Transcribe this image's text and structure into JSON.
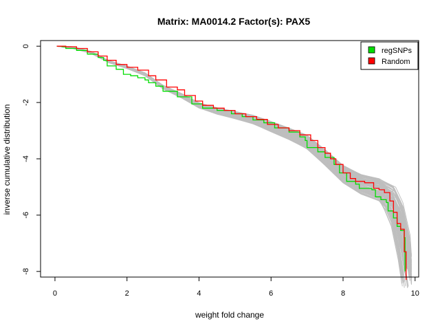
{
  "chart_data": {
    "type": "line",
    "title": "Matrix: MA0014.2 Factor(s): PAX5",
    "xlabel": "weight fold change",
    "ylabel": "inverse cumulative distribution",
    "xlim": [
      0,
      10
    ],
    "ylim": [
      -8.2,
      0.2
    ],
    "xticks": [
      0,
      2,
      4,
      6,
      8,
      10
    ],
    "yticks": [
      0,
      -2,
      -4,
      -6,
      -8
    ],
    "legend": {
      "position": "top-right",
      "entries": [
        {
          "label": "regSNPs",
          "color": "#00dd00"
        },
        {
          "label": "Random",
          "color": "#ff0000"
        }
      ]
    },
    "background_series": {
      "color": "#bebebe",
      "count": 100,
      "description_points": [
        [
          0.05,
          0
        ],
        [
          0.5,
          -0.05
        ],
        [
          1.0,
          -0.22
        ],
        [
          1.5,
          -0.55
        ],
        [
          2.0,
          -0.75
        ],
        [
          2.5,
          -1.0
        ],
        [
          3.0,
          -1.45
        ],
        [
          3.5,
          -1.75
        ],
        [
          4.0,
          -2.1
        ],
        [
          4.5,
          -2.3
        ],
        [
          5.0,
          -2.45
        ],
        [
          5.5,
          -2.6
        ],
        [
          6.0,
          -2.85
        ],
        [
          6.5,
          -3.1
        ],
        [
          7.0,
          -3.4
        ],
        [
          7.5,
          -3.95
        ],
        [
          8.0,
          -4.55
        ],
        [
          8.5,
          -4.9
        ],
        [
          9.0,
          -5.1
        ],
        [
          9.3,
          -5.4
        ],
        [
          9.5,
          -6.0
        ],
        [
          9.7,
          -7.2
        ],
        [
          9.8,
          -8.0
        ]
      ]
    },
    "series": [
      {
        "name": "regSNPs",
        "color": "#00dd00",
        "points": [
          [
            0.05,
            0
          ],
          [
            0.2,
            -0.02
          ],
          [
            0.3,
            -0.08
          ],
          [
            0.6,
            -0.15
          ],
          [
            0.9,
            -0.28
          ],
          [
            1.2,
            -0.4
          ],
          [
            1.35,
            -0.5
          ],
          [
            1.45,
            -0.7
          ],
          [
            1.7,
            -0.82
          ],
          [
            1.9,
            -1.0
          ],
          [
            2.1,
            -1.05
          ],
          [
            2.3,
            -1.12
          ],
          [
            2.5,
            -1.2
          ],
          [
            2.6,
            -1.3
          ],
          [
            2.8,
            -1.42
          ],
          [
            3.0,
            -1.6
          ],
          [
            3.4,
            -1.8
          ],
          [
            3.8,
            -2.05
          ],
          [
            4.1,
            -2.2
          ],
          [
            4.5,
            -2.28
          ],
          [
            4.9,
            -2.4
          ],
          [
            5.2,
            -2.5
          ],
          [
            5.5,
            -2.62
          ],
          [
            5.8,
            -2.72
          ],
          [
            6.1,
            -2.9
          ],
          [
            6.5,
            -3.05
          ],
          [
            6.8,
            -3.22
          ],
          [
            6.95,
            -3.35
          ],
          [
            7.0,
            -3.6
          ],
          [
            7.3,
            -3.75
          ],
          [
            7.5,
            -3.95
          ],
          [
            7.75,
            -4.2
          ],
          [
            7.9,
            -4.5
          ],
          [
            8.1,
            -4.8
          ],
          [
            8.35,
            -4.9
          ],
          [
            8.45,
            -5.05
          ],
          [
            8.8,
            -5.1
          ],
          [
            8.9,
            -5.35
          ],
          [
            9.05,
            -5.45
          ],
          [
            9.2,
            -5.55
          ],
          [
            9.25,
            -5.85
          ],
          [
            9.4,
            -6.1
          ],
          [
            9.5,
            -6.4
          ],
          [
            9.6,
            -6.55
          ],
          [
            9.7,
            -6.8
          ],
          [
            9.72,
            -8.0
          ]
        ]
      },
      {
        "name": "Random",
        "color": "#ff0000",
        "points": [
          [
            0.05,
            0
          ],
          [
            0.3,
            -0.02
          ],
          [
            0.6,
            -0.08
          ],
          [
            0.9,
            -0.2
          ],
          [
            1.2,
            -0.35
          ],
          [
            1.45,
            -0.5
          ],
          [
            1.7,
            -0.65
          ],
          [
            2.0,
            -0.75
          ],
          [
            2.3,
            -0.85
          ],
          [
            2.6,
            -1.05
          ],
          [
            2.8,
            -1.2
          ],
          [
            3.1,
            -1.45
          ],
          [
            3.4,
            -1.55
          ],
          [
            3.6,
            -1.75
          ],
          [
            3.9,
            -1.95
          ],
          [
            4.1,
            -2.1
          ],
          [
            4.4,
            -2.2
          ],
          [
            4.7,
            -2.28
          ],
          [
            5.0,
            -2.4
          ],
          [
            5.3,
            -2.5
          ],
          [
            5.6,
            -2.6
          ],
          [
            5.9,
            -2.78
          ],
          [
            6.2,
            -2.9
          ],
          [
            6.5,
            -3.0
          ],
          [
            6.8,
            -3.15
          ],
          [
            7.1,
            -3.35
          ],
          [
            7.3,
            -3.6
          ],
          [
            7.5,
            -3.8
          ],
          [
            7.65,
            -4.0
          ],
          [
            7.8,
            -4.2
          ],
          [
            8.0,
            -4.5
          ],
          [
            8.2,
            -4.7
          ],
          [
            8.35,
            -4.8
          ],
          [
            8.6,
            -4.85
          ],
          [
            8.85,
            -5.05
          ],
          [
            9.0,
            -5.1
          ],
          [
            9.15,
            -5.2
          ],
          [
            9.3,
            -5.5
          ],
          [
            9.4,
            -5.9
          ],
          [
            9.5,
            -6.3
          ],
          [
            9.6,
            -6.5
          ],
          [
            9.7,
            -7.3
          ],
          [
            9.75,
            -8.3
          ]
        ]
      }
    ]
  }
}
